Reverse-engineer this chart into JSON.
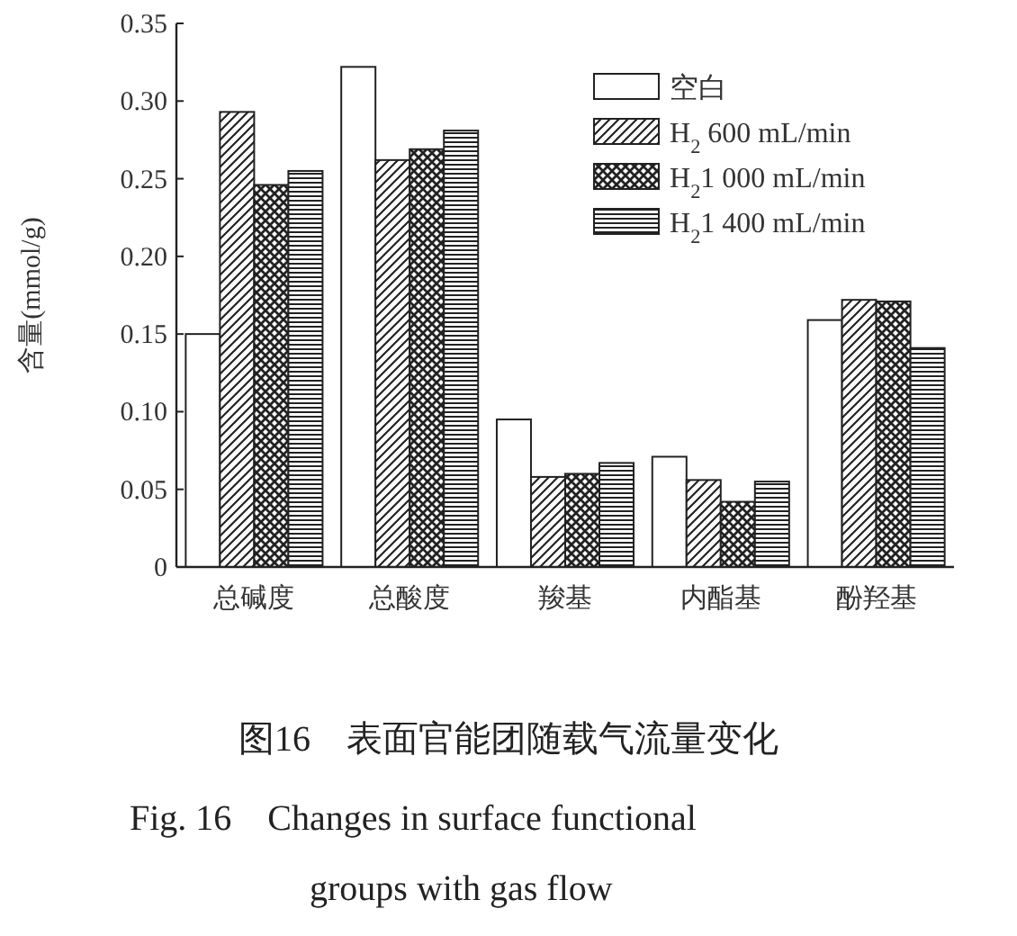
{
  "chart_data": {
    "type": "bar",
    "title": "图16　表面官能团随载气流量变化",
    "subtitle": "Fig. 16　Changes in surface functional groups with gas flow",
    "ylabel": "含量(mmol/g)",
    "categories": [
      "总碱度",
      "总酸度",
      "羧基",
      "内酯基",
      "酚羟基"
    ],
    "series": [
      {
        "name": "空白",
        "color": "#ffffff",
        "values": [
          0.15,
          0.322,
          0.095,
          0.071,
          0.159
        ]
      },
      {
        "name": "H$_{2}$ 600 mL/min",
        "color": "#222222",
        "values": [
          0.293,
          0.262,
          0.058,
          0.056,
          0.172
        ]
      },
      {
        "name": "H$_{2}$1 000 mL/min",
        "color": "#222222",
        "values": [
          0.246,
          0.269,
          0.06,
          0.042,
          0.171
        ]
      },
      {
        "name": "H$_{2}$1 400 mL/min",
        "color": "#222222",
        "values": [
          0.255,
          0.281,
          0.067,
          0.055,
          0.141
        ]
      }
    ],
    "ylim": [
      0,
      0.35
    ],
    "yticks": [
      0,
      0.05,
      {
        "value": 0.1,
        "label": "0.10"
      },
      0.15,
      {
        "value": 0.2,
        "label": "0.20"
      },
      0.25,
      {
        "value": 0.3,
        "label": "0.30"
      },
      0.35
    ],
    "grid": false,
    "legend": "top right"
  }
}
